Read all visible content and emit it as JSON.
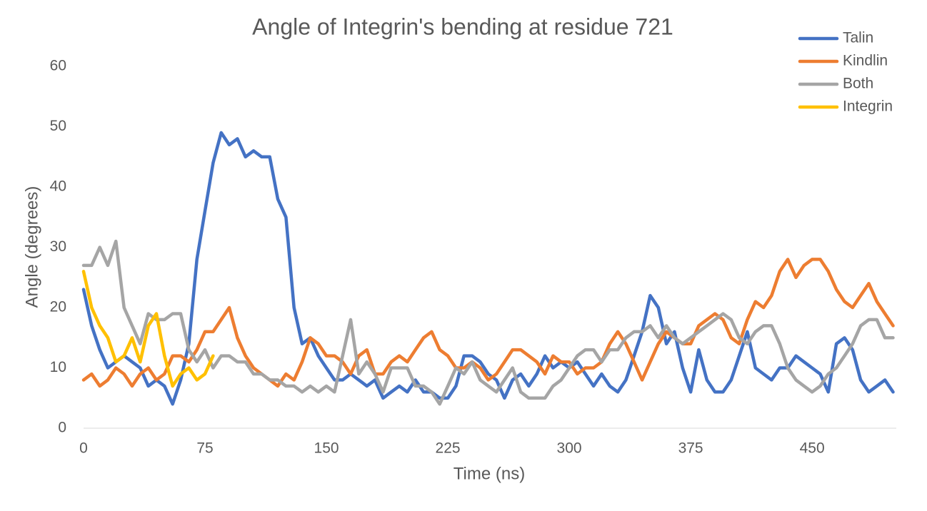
{
  "chart_data": {
    "type": "line",
    "title": "Angle of Integrin's bending at residue 721",
    "x_label": "Time (ns)",
    "y_label": "Angle (degrees)",
    "x": [
      0,
      5,
      10,
      15,
      20,
      25,
      30,
      35,
      40,
      45,
      50,
      55,
      60,
      65,
      70,
      75,
      80,
      85,
      90,
      95,
      100,
      105,
      110,
      115,
      120,
      125,
      130,
      135,
      140,
      145,
      150,
      155,
      160,
      165,
      170,
      175,
      180,
      185,
      190,
      195,
      200,
      205,
      210,
      215,
      220,
      225,
      230,
      235,
      240,
      245,
      250,
      255,
      260,
      265,
      270,
      275,
      280,
      285,
      290,
      295,
      300,
      305,
      310,
      315,
      320,
      325,
      330,
      335,
      340,
      345,
      350,
      355,
      360,
      365,
      370,
      375,
      380,
      385,
      390,
      395,
      400,
      405,
      410,
      415,
      420,
      425,
      430,
      435,
      440,
      445,
      450,
      455,
      460,
      465,
      470,
      475,
      480,
      485,
      490,
      495,
      500
    ],
    "series": [
      {
        "name": "Talin",
        "color": "#4472c4",
        "values": [
          23,
          17,
          13,
          10,
          11,
          12,
          11,
          10,
          7,
          8,
          7,
          4,
          8,
          14,
          28,
          36,
          44,
          49,
          47,
          48,
          45,
          46,
          45,
          45,
          38,
          35,
          20,
          14,
          15,
          12,
          10,
          8,
          8,
          9,
          8,
          7,
          8,
          5,
          6,
          7,
          6,
          8,
          6,
          6,
          5,
          5,
          7,
          12,
          12,
          11,
          9,
          8,
          5,
          8,
          9,
          7,
          9,
          12,
          10,
          11,
          10,
          11,
          9,
          7,
          9,
          7,
          6,
          8,
          12,
          16,
          22,
          20,
          14,
          16,
          10,
          6,
          13,
          8,
          6,
          6,
          8,
          12,
          16,
          10,
          9,
          8,
          10,
          10,
          12,
          11,
          10,
          9,
          6,
          14,
          15,
          13,
          8,
          6,
          7,
          8,
          6
        ]
      },
      {
        "name": "Kindlin",
        "color": "#ed7d31",
        "values": [
          8,
          9,
          7,
          8,
          10,
          9,
          7,
          9,
          10,
          8,
          9,
          12,
          12,
          11,
          13,
          16,
          16,
          18,
          20,
          15,
          12,
          10,
          9,
          8,
          7,
          9,
          8,
          11,
          15,
          14,
          12,
          12,
          11,
          9,
          12,
          13,
          9,
          9,
          11,
          12,
          11,
          13,
          15,
          16,
          13,
          12,
          10,
          10,
          11,
          10,
          8,
          9,
          11,
          13,
          13,
          12,
          11,
          9,
          12,
          11,
          11,
          9,
          10,
          10,
          11,
          14,
          16,
          14,
          11,
          8,
          11,
          14,
          16,
          15,
          14,
          14,
          17,
          18,
          19,
          18,
          15,
          14,
          18,
          21,
          20,
          22,
          26,
          28,
          25,
          27,
          28,
          28,
          26,
          23,
          21,
          20,
          22,
          24,
          21,
          19,
          17
        ]
      },
      {
        "name": "Both",
        "color": "#a5a5a5",
        "values": [
          27,
          27,
          30,
          27,
          31,
          20,
          17,
          14,
          19,
          18,
          18,
          19,
          19,
          13,
          11,
          13,
          10,
          12,
          12,
          11,
          11,
          9,
          9,
          8,
          8,
          7,
          7,
          6,
          7,
          6,
          7,
          6,
          12,
          18,
          9,
          11,
          9,
          6,
          10,
          10,
          10,
          7,
          7,
          6,
          4,
          7,
          10,
          9,
          11,
          8,
          7,
          6,
          8,
          10,
          6,
          5,
          5,
          5,
          7,
          8,
          10,
          12,
          13,
          13,
          11,
          13,
          13,
          15,
          16,
          16,
          17,
          15,
          17,
          15,
          14,
          15,
          16,
          17,
          18,
          19,
          18,
          15,
          14,
          16,
          17,
          17,
          14,
          10,
          8,
          7,
          6,
          7,
          9,
          10,
          12,
          14,
          17,
          18,
          18,
          15,
          15
        ]
      },
      {
        "name": "Integrin",
        "color": "#ffc000",
        "values": [
          26,
          20,
          17,
          15,
          11,
          12,
          15,
          11,
          17,
          19,
          12,
          7,
          9,
          10,
          8,
          9,
          12,
          null,
          null,
          null,
          null,
          null,
          null,
          null,
          null,
          null,
          null,
          null,
          null,
          null,
          null,
          null,
          null,
          null,
          null,
          null,
          null,
          null,
          null,
          null,
          null,
          null,
          null,
          null,
          null,
          null,
          null,
          null,
          null,
          null,
          null,
          null,
          null,
          null,
          null,
          null,
          null,
          null,
          null,
          null,
          null,
          null,
          null,
          null,
          null,
          null,
          null,
          null,
          null,
          null,
          null,
          null,
          null,
          null,
          null,
          null,
          null,
          null,
          null,
          null,
          null,
          null,
          null,
          null,
          null,
          null,
          null,
          null,
          null,
          null,
          null,
          null,
          null,
          null,
          null,
          null,
          null,
          null,
          null,
          null,
          null
        ]
      }
    ],
    "xlim": [
      0,
      502
    ],
    "ylim": [
      0,
      60
    ],
    "xticks": [
      0,
      75,
      150,
      225,
      300,
      375,
      450
    ],
    "yticks": [
      0,
      10,
      20,
      30,
      40,
      50,
      60
    ],
    "legend": "top-right"
  }
}
